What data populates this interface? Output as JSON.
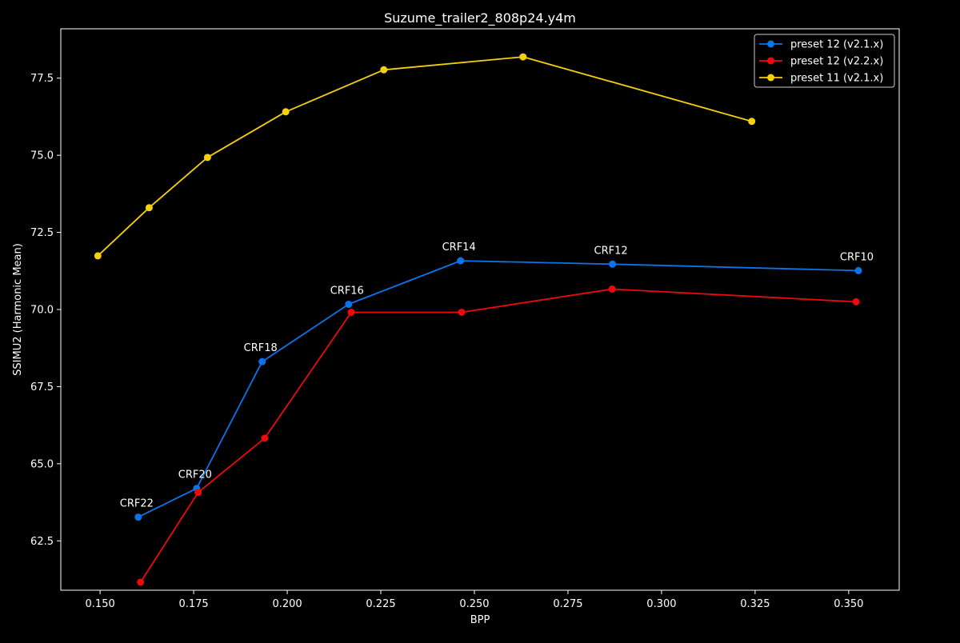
{
  "chart_data": {
    "type": "line",
    "title": "Suzume_trailer2_808p24.y4m",
    "xlabel": "BPP",
    "ylabel": "SSIMU2 (Harmonic Mean)",
    "xlim": [
      0.1395,
      0.3635
    ],
    "ylim": [
      60.9,
      79.1
    ],
    "xticks": [
      {
        "value": 0.15,
        "label": "0.150"
      },
      {
        "value": 0.175,
        "label": "0.175"
      },
      {
        "value": 0.2,
        "label": "0.200"
      },
      {
        "value": 0.225,
        "label": "0.225"
      },
      {
        "value": 0.25,
        "label": "0.250"
      },
      {
        "value": 0.275,
        "label": "0.275"
      },
      {
        "value": 0.3,
        "label": "0.300"
      },
      {
        "value": 0.325,
        "label": "0.325"
      },
      {
        "value": 0.35,
        "label": "0.350"
      }
    ],
    "yticks": [
      {
        "value": 62.5,
        "label": "62.5"
      },
      {
        "value": 65.0,
        "label": "65.0"
      },
      {
        "value": 67.5,
        "label": "67.5"
      },
      {
        "value": 70.0,
        "label": "70.0"
      },
      {
        "value": 72.5,
        "label": "72.5"
      },
      {
        "value": 75.0,
        "label": "75.0"
      },
      {
        "value": 77.5,
        "label": "77.5"
      }
    ],
    "grid": false,
    "legend_position": "top-right",
    "series": [
      {
        "name": "preset 12 (v2.1.x)",
        "color": "#0a74e8",
        "points": [
          {
            "x": 0.1602,
            "y": 63.27
          },
          {
            "x": 0.1758,
            "y": 64.2
          },
          {
            "x": 0.1933,
            "y": 68.31
          },
          {
            "x": 0.2164,
            "y": 70.17
          },
          {
            "x": 0.2463,
            "y": 71.58
          },
          {
            "x": 0.2869,
            "y": 71.47
          },
          {
            "x": 0.3526,
            "y": 71.26
          }
        ]
      },
      {
        "name": "preset 12 (v2.2.x)",
        "color": "#ee0a0a",
        "points": [
          {
            "x": 0.1608,
            "y": 61.16
          },
          {
            "x": 0.1762,
            "y": 64.07
          },
          {
            "x": 0.194,
            "y": 65.83
          },
          {
            "x": 0.2171,
            "y": 69.91
          },
          {
            "x": 0.2466,
            "y": 69.91
          },
          {
            "x": 0.2868,
            "y": 70.66
          },
          {
            "x": 0.352,
            "y": 70.25
          }
        ]
      },
      {
        "name": "preset 11 (v2.1.x)",
        "color": "#f7d00c",
        "points": [
          {
            "x": 0.1494,
            "y": 71.74
          },
          {
            "x": 0.1631,
            "y": 73.3
          },
          {
            "x": 0.1787,
            "y": 74.93
          },
          {
            "x": 0.1996,
            "y": 76.41
          },
          {
            "x": 0.2258,
            "y": 77.77
          },
          {
            "x": 0.263,
            "y": 78.19
          },
          {
            "x": 0.3241,
            "y": 76.1
          }
        ]
      }
    ],
    "annotations": [
      {
        "text": "CRF22",
        "x": 0.1602,
        "y": 63.27
      },
      {
        "text": "CRF20",
        "x": 0.1758,
        "y": 64.2
      },
      {
        "text": "CRF18",
        "x": 0.1933,
        "y": 68.31
      },
      {
        "text": "CRF16",
        "x": 0.2164,
        "y": 70.17
      },
      {
        "text": "CRF14",
        "x": 0.2463,
        "y": 71.58
      },
      {
        "text": "CRF12",
        "x": 0.2869,
        "y": 71.47
      },
      {
        "text": "CRF10",
        "x": 0.3526,
        "y": 71.26
      }
    ]
  }
}
